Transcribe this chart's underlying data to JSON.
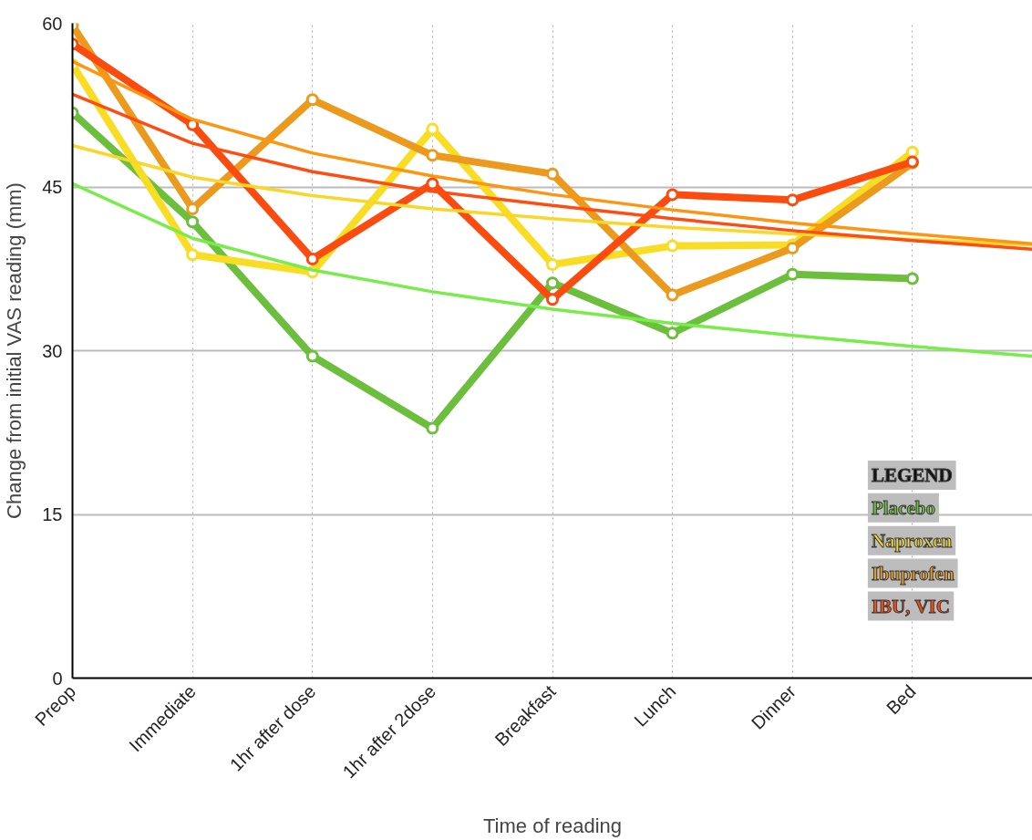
{
  "chart_data": {
    "type": "line",
    "xlabel": "Time of reading",
    "ylabel": "Change from initial VAS reading (mm)",
    "legend_title": "LEGEND",
    "categories": [
      "Preop",
      "Immediate",
      "1hr after dose",
      "1hr after 2dose",
      "Breakfast",
      "Lunch",
      "Dinner",
      "Bed",
      null
    ],
    "ylim": [
      0,
      60
    ],
    "yticks": [
      0,
      15,
      30,
      45,
      60
    ],
    "grid": true,
    "legend": "bottom right",
    "marker": "circle",
    "line_style": "solid",
    "series": [
      {
        "type": "line",
        "marker": "none",
        "color": "#78ec4a",
        "values": [
          45.3,
          40.3,
          37.4,
          35.4,
          33.8,
          32.5,
          31.4,
          30.4,
          29.5
        ]
      },
      {
        "type": "line",
        "marker": "none",
        "color": "#f9d72a",
        "values": [
          48.8,
          45.9,
          44.2,
          43.0,
          42.1,
          41.3,
          40.7,
          40.2,
          39.7
        ]
      },
      {
        "type": "line",
        "marker": "none",
        "color": "#ff9410",
        "values": [
          56.5,
          51.2,
          48.1,
          46.0,
          44.3,
          42.9,
          41.7,
          40.7,
          39.8
        ]
      },
      {
        "type": "line",
        "marker": "none",
        "color": "#ff4d12",
        "values": [
          53.5,
          49.0,
          46.4,
          44.6,
          43.3,
          42.1,
          41.0,
          40.1,
          39.3
        ]
      },
      {
        "name": "Placebo",
        "color": "#6cbf3c",
        "values": [
          51.8,
          41.8,
          29.5,
          22.9,
          36.2,
          31.6,
          37.0,
          36.6,
          null
        ]
      },
      {
        "name": "Naproxen",
        "color": "#f9dc24",
        "values": [
          56.2,
          38.8,
          37.2,
          50.3,
          37.9,
          39.6,
          39.7,
          48.2,
          null
        ]
      },
      {
        "name": "Ibuprofen",
        "color": "#ec9a1e",
        "values": [
          59.8,
          43.0,
          53.0,
          47.9,
          46.2,
          35.1,
          39.4,
          47.2,
          null
        ]
      },
      {
        "name": "IBU, VIC",
        "color": "#fb4b0e",
        "values": [
          58.1,
          50.7,
          38.4,
          45.3,
          34.7,
          44.3,
          43.8,
          47.3,
          null
        ]
      }
    ]
  }
}
